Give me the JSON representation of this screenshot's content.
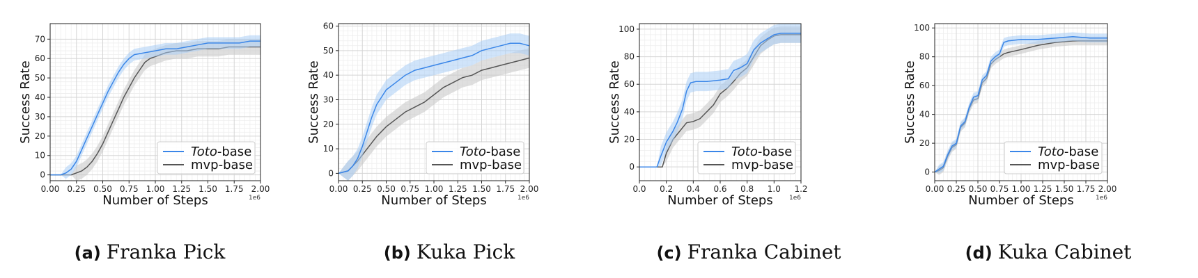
{
  "figures": [
    {
      "letter": "(a)",
      "title": "Franka Pick"
    },
    {
      "letter": "(b)",
      "title": "Kuka Pick"
    },
    {
      "letter": "(c)",
      "title": "Franka Cabinet"
    },
    {
      "letter": "(d)",
      "title": "Kuka Cabinet"
    }
  ],
  "colors": {
    "toto": "#3a86e8",
    "mvp": "#555555",
    "toto_band": "#a9cdf5",
    "mvp_band": "#c9c9c9"
  },
  "chart_data": [
    {
      "type": "line",
      "xlabel": "Number of Steps",
      "ylabel": "Success Rate",
      "x_exponent_label": "1e6",
      "xlim": [
        0,
        2.0
      ],
      "ylim": [
        -3,
        78
      ],
      "xticks": [
        0.0,
        0.25,
        0.5,
        0.75,
        1.0,
        1.25,
        1.5,
        1.75,
        2.0
      ],
      "xtick_labels": [
        "0.00",
        "0.25",
        "0.50",
        "0.75",
        "1.00",
        "1.25",
        "1.50",
        "1.75",
        "2.00"
      ],
      "yticks": [
        0,
        10,
        20,
        30,
        40,
        50,
        60,
        70
      ],
      "grid": true,
      "legend_position": "bottom-right",
      "series": [
        {
          "name_italic": "Toto",
          "name_rest": "-base",
          "x": [
            0,
            0.1,
            0.15,
            0.2,
            0.25,
            0.3,
            0.35,
            0.4,
            0.45,
            0.5,
            0.55,
            0.6,
            0.65,
            0.7,
            0.75,
            0.8,
            0.9,
            1.0,
            1.1,
            1.2,
            1.3,
            1.4,
            1.5,
            1.6,
            1.7,
            1.8,
            1.9,
            2.0
          ],
          "y": [
            0,
            0,
            1,
            3,
            7,
            13,
            19,
            25,
            31,
            37,
            43,
            48,
            53,
            57,
            60,
            62,
            63,
            64,
            65,
            65,
            66,
            67,
            68,
            68,
            68,
            68,
            69,
            69
          ],
          "band": 3
        },
        {
          "name": "mvp-base",
          "x": [
            0,
            0.2,
            0.25,
            0.3,
            0.35,
            0.4,
            0.45,
            0.5,
            0.55,
            0.6,
            0.65,
            0.7,
            0.75,
            0.8,
            0.85,
            0.9,
            0.95,
            1.0,
            1.1,
            1.2,
            1.3,
            1.4,
            1.5,
            1.6,
            1.7,
            1.8,
            1.9,
            2.0
          ],
          "y": [
            0,
            0,
            1,
            2,
            4,
            7,
            11,
            16,
            22,
            28,
            34,
            40,
            45,
            50,
            54,
            58,
            60,
            61,
            63,
            64,
            64,
            65,
            65,
            65,
            66,
            66,
            66,
            66
          ],
          "band": 4
        }
      ]
    },
    {
      "type": "line",
      "xlabel": "Number of Steps",
      "ylabel": "Success Rate",
      "x_exponent_label": "1e6",
      "xlim": [
        0,
        2.0
      ],
      "ylim": [
        -3,
        61
      ],
      "xticks": [
        0.0,
        0.25,
        0.5,
        0.75,
        1.0,
        1.25,
        1.5,
        1.75,
        2.0
      ],
      "xtick_labels": [
        "0.00",
        "0.25",
        "0.50",
        "0.75",
        "1.00",
        "1.25",
        "1.50",
        "1.75",
        "2.00"
      ],
      "yticks": [
        0,
        10,
        20,
        30,
        40,
        50,
        60
      ],
      "grid": true,
      "legend_position": "bottom-right",
      "series": [
        {
          "name_italic": "Toto",
          "name_rest": "-base",
          "x": [
            0,
            0.1,
            0.15,
            0.2,
            0.25,
            0.3,
            0.35,
            0.4,
            0.45,
            0.5,
            0.6,
            0.7,
            0.8,
            0.9,
            1.0,
            1.1,
            1.2,
            1.3,
            1.4,
            1.5,
            1.6,
            1.7,
            1.8,
            1.9,
            2.0
          ],
          "y": [
            0,
            1,
            3,
            6,
            11,
            17,
            23,
            28,
            31,
            34,
            37,
            40,
            42,
            43,
            44,
            45,
            46,
            47,
            48,
            50,
            51,
            52,
            53,
            53,
            52
          ],
          "band": 4
        },
        {
          "name": "mvp-base",
          "x": [
            0,
            0.1,
            0.2,
            0.3,
            0.4,
            0.5,
            0.6,
            0.7,
            0.8,
            0.9,
            1.0,
            1.1,
            1.2,
            1.3,
            1.4,
            1.5,
            1.6,
            1.7,
            1.8,
            1.9,
            2.0
          ],
          "y": [
            0,
            1,
            5,
            10,
            15,
            19,
            22,
            25,
            27,
            29,
            32,
            35,
            37,
            39,
            40,
            42,
            43,
            44,
            45,
            46,
            47
          ],
          "band": 4
        }
      ]
    },
    {
      "type": "line",
      "xlabel": "Number of Steps",
      "ylabel": "Success Rate",
      "x_exponent_label": "1e6",
      "xlim": [
        0,
        1.2
      ],
      "ylim": [
        -10,
        104
      ],
      "xticks": [
        0.0,
        0.2,
        0.4,
        0.6,
        0.8,
        1.0,
        1.2
      ],
      "xtick_labels": [
        "0.0",
        "0.2",
        "0.4",
        "0.6",
        "0.8",
        "1.0",
        "1.2"
      ],
      "yticks": [
        0,
        20,
        40,
        60,
        80,
        100
      ],
      "grid": true,
      "legend_position": "bottom-right",
      "series": [
        {
          "name_italic": "Toto",
          "name_rest": "-base",
          "x": [
            0,
            0.13,
            0.16,
            0.2,
            0.25,
            0.28,
            0.32,
            0.35,
            0.38,
            0.42,
            0.5,
            0.6,
            0.66,
            0.7,
            0.75,
            0.8,
            0.85,
            0.9,
            0.95,
            1.0,
            1.05,
            1.1,
            1.2
          ],
          "y": [
            0,
            0,
            8,
            18,
            26,
            32,
            42,
            55,
            61,
            62,
            62,
            63,
            64,
            70,
            72,
            75,
            85,
            90,
            93,
            96,
            97,
            97,
            97
          ],
          "band": 7
        },
        {
          "name": "mvp-base",
          "x": [
            0,
            0.17,
            0.2,
            0.25,
            0.3,
            0.35,
            0.4,
            0.45,
            0.5,
            0.55,
            0.6,
            0.65,
            0.7,
            0.75,
            0.8,
            0.85,
            0.9,
            0.95,
            1.0,
            1.05,
            1.1,
            1.2
          ],
          "y": [
            0,
            0,
            10,
            20,
            26,
            32,
            33,
            35,
            40,
            45,
            53,
            57,
            62,
            68,
            72,
            80,
            88,
            92,
            95,
            96,
            96,
            96
          ],
          "band": 6
        }
      ]
    },
    {
      "type": "line",
      "xlabel": "Number of Steps",
      "ylabel": "Success Rate",
      "x_exponent_label": "1e6",
      "xlim": [
        0,
        2.0
      ],
      "ylim": [
        -6,
        103
      ],
      "xticks": [
        0.0,
        0.25,
        0.5,
        0.75,
        1.0,
        1.25,
        1.5,
        1.75,
        2.0
      ],
      "xtick_labels": [
        "0.00",
        "0.25",
        "0.50",
        "0.75",
        "1.00",
        "1.25",
        "1.50",
        "1.75",
        "2.00"
      ],
      "yticks": [
        0,
        20,
        40,
        60,
        80,
        100
      ],
      "grid": true,
      "legend_position": "bottom-right",
      "series": [
        {
          "name_italic": "Toto",
          "name_rest": "-base",
          "x": [
            0,
            0.05,
            0.1,
            0.15,
            0.2,
            0.25,
            0.3,
            0.35,
            0.4,
            0.45,
            0.5,
            0.55,
            0.6,
            0.65,
            0.7,
            0.75,
            0.8,
            0.85,
            1.0,
            1.2,
            1.4,
            1.6,
            1.8,
            2.0
          ],
          "y": [
            0,
            2,
            4,
            12,
            18,
            20,
            32,
            35,
            45,
            52,
            53,
            64,
            67,
            77,
            80,
            82,
            90,
            91,
            92,
            92,
            93,
            94,
            93,
            93
          ],
          "band": 3
        },
        {
          "name": "mvp-base",
          "x": [
            0,
            0.05,
            0.1,
            0.15,
            0.2,
            0.25,
            0.3,
            0.35,
            0.4,
            0.45,
            0.5,
            0.55,
            0.6,
            0.65,
            0.7,
            0.75,
            0.8,
            0.85,
            1.0,
            1.2,
            1.4,
            1.6,
            1.8,
            2.0
          ],
          "y": [
            0,
            1,
            3,
            11,
            17,
            19,
            31,
            34,
            44,
            50,
            51,
            62,
            65,
            75,
            78,
            80,
            82,
            83,
            85,
            88,
            90,
            91,
            91,
            91
          ],
          "band": 3
        }
      ]
    }
  ]
}
